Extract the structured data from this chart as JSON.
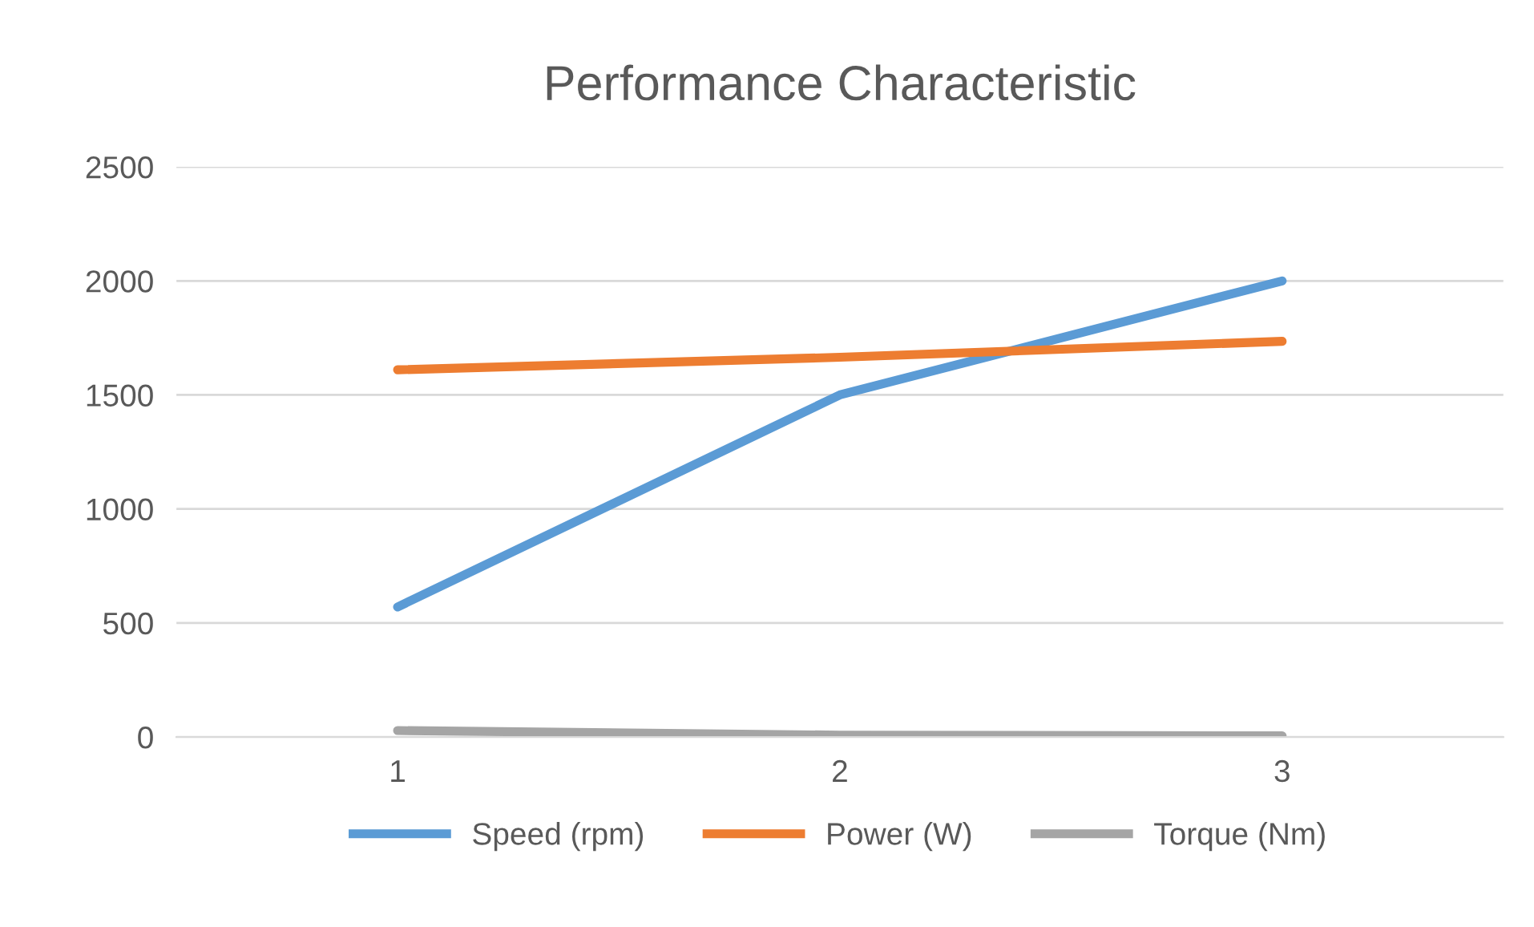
{
  "chart_data": {
    "type": "line",
    "title": "Performance Characteristic",
    "categories": [
      "1",
      "2",
      "3"
    ],
    "series": [
      {
        "name": "Speed (rpm)",
        "color": "#5b9bd5",
        "values": [
          570,
          1500,
          2000
        ]
      },
      {
        "name": "Power (W)",
        "color": "#ed7d31",
        "values": [
          1610,
          1665,
          1735
        ]
      },
      {
        "name": "Torque (Nm)",
        "color": "#a5a5a5",
        "values": [
          28,
          8,
          5
        ]
      }
    ],
    "ylim": [
      0,
      2500
    ],
    "yticks": [
      0,
      500,
      1000,
      1500,
      2000,
      2500
    ],
    "grid": "y",
    "legend": "bottom",
    "marker": "none",
    "line_style": "solid"
  }
}
